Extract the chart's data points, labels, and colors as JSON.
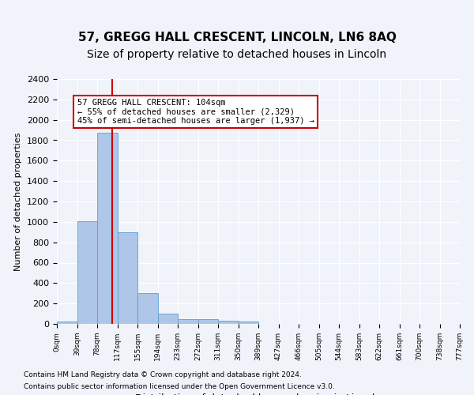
{
  "title": "57, GREGG HALL CRESCENT, LINCOLN, LN6 8AQ",
  "subtitle": "Size of property relative to detached houses in Lincoln",
  "xlabel": "Distribution of detached houses by size in Lincoln",
  "ylabel": "Number of detached properties",
  "footnote1": "Contains HM Land Registry data © Crown copyright and database right 2024.",
  "footnote2": "Contains public sector information licensed under the Open Government Licence v3.0.",
  "bin_labels": [
    "0sqm",
    "39sqm",
    "78sqm",
    "117sqm",
    "155sqm",
    "194sqm",
    "233sqm",
    "272sqm",
    "311sqm",
    "350sqm",
    "389sqm",
    "427sqm",
    "466sqm",
    "505sqm",
    "544sqm",
    "583sqm",
    "622sqm",
    "661sqm",
    "700sqm",
    "738sqm",
    "777sqm"
  ],
  "bar_values": [
    20,
    1005,
    1870,
    895,
    305,
    100,
    50,
    45,
    30,
    20,
    0,
    0,
    0,
    0,
    0,
    0,
    0,
    0,
    0,
    0
  ],
  "bar_color": "#aec6e8",
  "bar_edge_color": "#5a9fd4",
  "red_line_x": 2.75,
  "red_line_color": "#cc0000",
  "annotation_text": "57 GREGG HALL CRESCENT: 104sqm\n← 55% of detached houses are smaller (2,329)\n45% of semi-detached houses are larger (1,937) →",
  "annotation_box_color": "#cc0000",
  "ylim": [
    0,
    2400
  ],
  "yticks": [
    0,
    200,
    400,
    600,
    800,
    1000,
    1200,
    1400,
    1600,
    1800,
    2000,
    2200,
    2400
  ],
  "background_color": "#f0f4fa",
  "grid_color": "#ffffff",
  "title_fontsize": 11,
  "subtitle_fontsize": 10
}
